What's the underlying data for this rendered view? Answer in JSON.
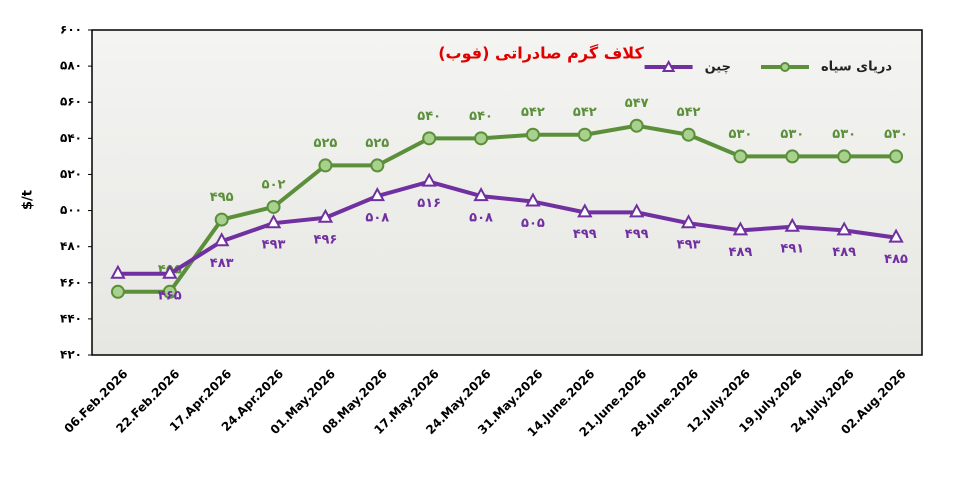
{
  "chart_data": {
    "type": "line",
    "title": "کلاف گرم صادراتی (فوب)",
    "y_label": "$/t",
    "categories": [
      "06.Feb.2026",
      "22.Feb.2026",
      "17.Apr.2026",
      "24.Apr.2026",
      "01.May.2026",
      "08.May.2026",
      "17.May.2026",
      "24.May.2026",
      "31.May.2026",
      "14.June.2026",
      "21.June.2026",
      "28.June.2026",
      "12.July.2026",
      "19.July.2026",
      "24.July.2026",
      "02.Aug.2026"
    ],
    "series": [
      {
        "name": "دریای سیاه",
        "color": "#5b8f3a",
        "marker": "circle",
        "values": [
          455,
          455,
          495,
          502,
          525,
          525,
          540,
          540,
          542,
          542,
          547,
          542,
          530,
          530,
          530,
          530
        ],
        "value_labels": [
          null,
          "۴۵۵",
          "۴۹۵",
          "۵۰۲",
          "۵۲۵",
          "۵۲۵",
          "۵۴۰",
          "۵۴۰",
          "۵۴۲",
          "۵۴۲",
          "۵۴۷",
          "۵۴۲",
          "۵۳۰",
          "۵۳۰",
          "۵۳۰",
          "۵۳۰"
        ]
      },
      {
        "name": "چین",
        "color": "#7030a0",
        "marker": "triangle",
        "values": [
          465,
          465,
          483,
          493,
          496,
          508,
          516,
          508,
          505,
          499,
          499,
          493,
          489,
          491,
          489,
          485
        ],
        "value_labels": [
          null,
          "۴۶۵",
          "۴۸۳",
          "۴۹۳",
          "۴۹۶",
          "۵۰۸",
          "۵۱۶",
          "۵۰۸",
          "۵۰۵",
          "۴۹۹",
          "۴۹۹",
          "۴۹۳",
          "۴۸۹",
          "۴۹۱",
          "۴۸۹",
          "۴۸۵"
        ]
      }
    ],
    "ylim": [
      420,
      600
    ],
    "yticks": [
      {
        "value": 420,
        "label": "۴۲۰"
      },
      {
        "value": 440,
        "label": "۴۴۰"
      },
      {
        "value": 460,
        "label": "۴۶۰"
      },
      {
        "value": 480,
        "label": "۴۸۰"
      },
      {
        "value": 500,
        "label": "۵۰۰"
      },
      {
        "value": 520,
        "label": "۵۲۰"
      },
      {
        "value": 540,
        "label": "۵۴۰"
      },
      {
        "value": 560,
        "label": "۵۶۰"
      },
      {
        "value": 580,
        "label": "۵۸۰"
      },
      {
        "value": 600,
        "label": "۶۰۰"
      }
    ],
    "legend": "top-right"
  }
}
